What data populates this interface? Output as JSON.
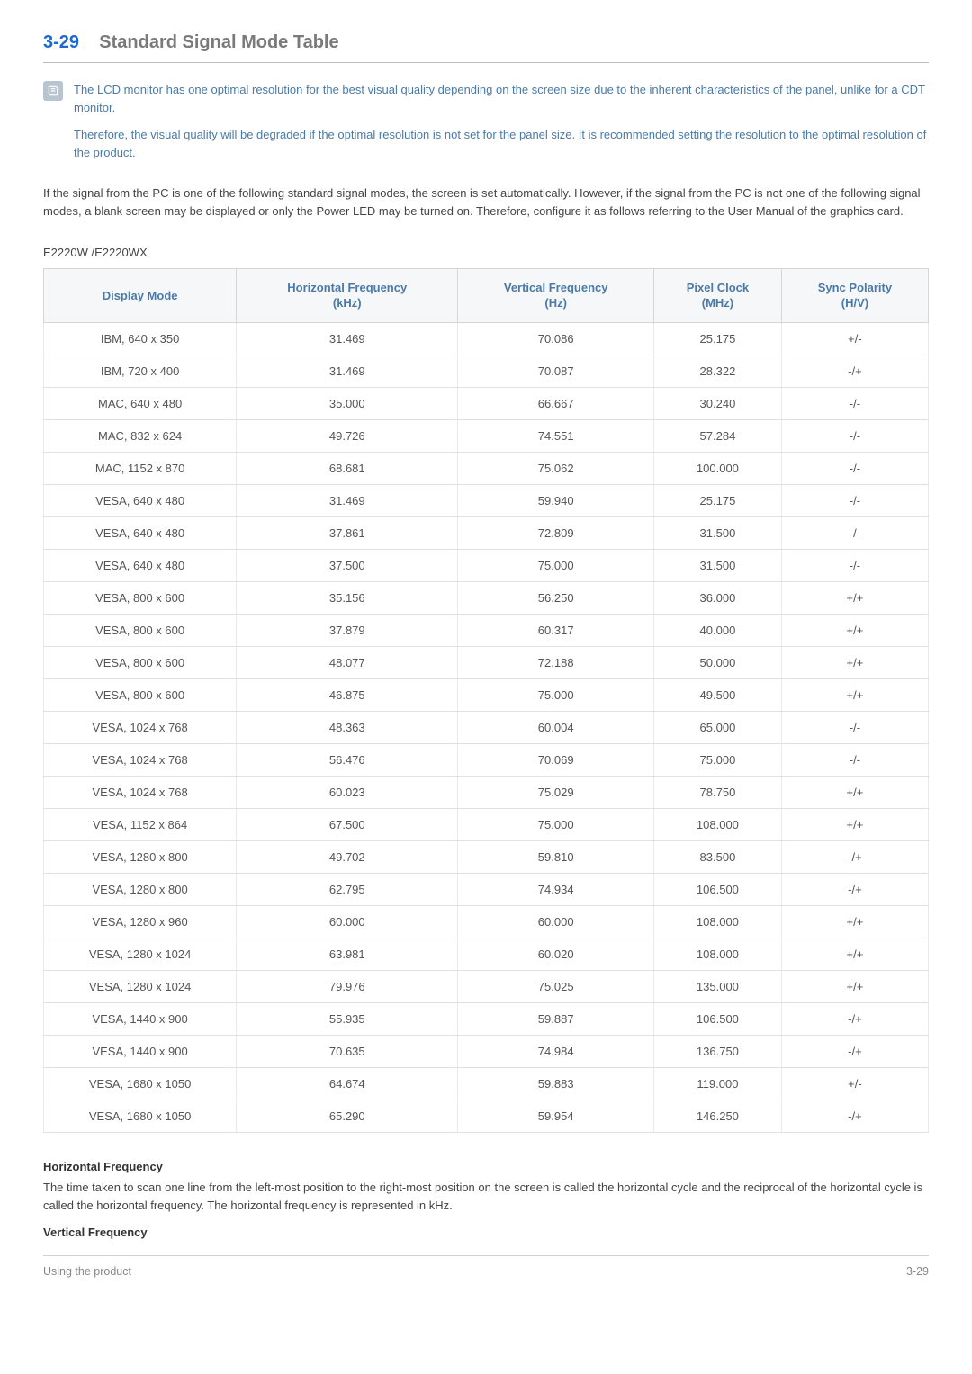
{
  "heading": {
    "number": "3-29",
    "title": "Standard Signal Mode Table"
  },
  "note": {
    "p1": "The LCD monitor has one optimal resolution for the best visual quality depending on the screen size due to the inherent characteristics of the panel, unlike for a CDT monitor.",
    "p2": "Therefore, the visual quality will be degraded if the optimal resolution is not set for the panel size. It is recommended setting the resolution to the optimal resolution of the product."
  },
  "intro": "If the signal from the PC is one of the following standard signal modes, the screen is set automatically. However, if the signal from the PC is not one of the following signal modes, a blank screen may be displayed or only the Power LED may be turned on. Therefore, configure it as follows referring to the User Manual of the graphics card.",
  "model": "E2220W /E2220WX",
  "table": {
    "columns": [
      "Display Mode",
      "Horizontal Frequency (kHz)",
      "Vertical Frequency (Hz)",
      "Pixel Clock (MHz)",
      "Sync Polarity (H/V)"
    ],
    "rows": [
      [
        "IBM, 640 x 350",
        "31.469",
        "70.086",
        "25.175",
        "+/-"
      ],
      [
        "IBM, 720 x 400",
        "31.469",
        "70.087",
        "28.322",
        "-/+"
      ],
      [
        "MAC, 640 x 480",
        "35.000",
        "66.667",
        "30.240",
        "-/-"
      ],
      [
        "MAC, 832 x 624",
        "49.726",
        "74.551",
        "57.284",
        "-/-"
      ],
      [
        "MAC, 1152 x 870",
        "68.681",
        "75.062",
        "100.000",
        "-/-"
      ],
      [
        "VESA, 640 x 480",
        "31.469",
        "59.940",
        "25.175",
        "-/-"
      ],
      [
        "VESA, 640 x 480",
        "37.861",
        "72.809",
        "31.500",
        "-/-"
      ],
      [
        "VESA, 640 x 480",
        "37.500",
        "75.000",
        "31.500",
        "-/-"
      ],
      [
        "VESA, 800 x 600",
        "35.156",
        "56.250",
        "36.000",
        "+/+"
      ],
      [
        "VESA, 800 x 600",
        "37.879",
        "60.317",
        "40.000",
        "+/+"
      ],
      [
        "VESA, 800 x 600",
        "48.077",
        "72.188",
        "50.000",
        "+/+"
      ],
      [
        "VESA, 800 x 600",
        "46.875",
        "75.000",
        "49.500",
        "+/+"
      ],
      [
        "VESA, 1024 x 768",
        "48.363",
        "60.004",
        "65.000",
        "-/-"
      ],
      [
        "VESA, 1024 x 768",
        "56.476",
        "70.069",
        "75.000",
        "-/-"
      ],
      [
        "VESA, 1024 x 768",
        "60.023",
        "75.029",
        "78.750",
        "+/+"
      ],
      [
        "VESA, 1152 x 864",
        "67.500",
        "75.000",
        "108.000",
        "+/+"
      ],
      [
        "VESA, 1280 x 800",
        "49.702",
        "59.810",
        "83.500",
        "-/+"
      ],
      [
        "VESA, 1280 x 800",
        "62.795",
        "74.934",
        "106.500",
        "-/+"
      ],
      [
        "VESA, 1280 x 960",
        "60.000",
        "60.000",
        "108.000",
        "+/+"
      ],
      [
        "VESA, 1280 x 1024",
        "63.981",
        "60.020",
        "108.000",
        "+/+"
      ],
      [
        "VESA, 1280 x 1024",
        "79.976",
        "75.025",
        "135.000",
        "+/+"
      ],
      [
        "VESA, 1440 x 900",
        "55.935",
        "59.887",
        "106.500",
        "-/+"
      ],
      [
        "VESA, 1440 x 900",
        "70.635",
        "74.984",
        "136.750",
        "-/+"
      ],
      [
        "VESA, 1680 x 1050",
        "64.674",
        "59.883",
        "119.000",
        "+/-"
      ],
      [
        "VESA, 1680 x 1050",
        "65.290",
        "59.954",
        "146.250",
        "-/+"
      ]
    ]
  },
  "defs": {
    "hf_title": "Horizontal Frequency",
    "hf_text": "The time taken to scan one line from the left-most position to the right-most position on the screen is called the horizontal cycle and the reciprocal of the horizontal cycle is called the horizontal frequency. The horizontal frequency is represented in kHz.",
    "vf_title": "Vertical Frequency"
  },
  "footer": {
    "left": "Using the product",
    "right": "3-29"
  },
  "colors": {
    "heading_num": "#1c69d4",
    "heading_title": "#7a7a7a",
    "note_text": "#4a7aa8",
    "table_header_bg": "#f5f7f9",
    "table_header_text": "#4a7aa8",
    "border": "#d6d6d6"
  }
}
